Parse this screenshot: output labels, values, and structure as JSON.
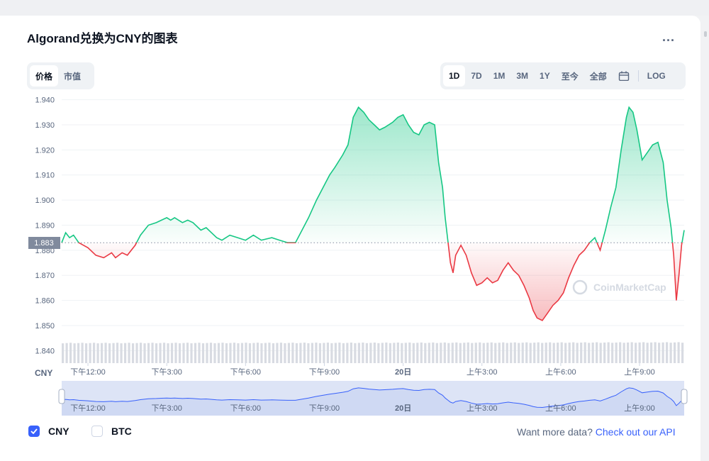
{
  "title": "Algorand兑换为CNY的图表",
  "more_label": "...",
  "view_tabs": [
    {
      "label": "价格",
      "active": true
    },
    {
      "label": "市值",
      "active": false
    }
  ],
  "range_tabs": [
    {
      "label": "1D",
      "active": true
    },
    {
      "label": "7D",
      "active": false
    },
    {
      "label": "1M",
      "active": false
    },
    {
      "label": "3M",
      "active": false
    },
    {
      "label": "1Y",
      "active": false
    },
    {
      "label": "至今",
      "active": false
    },
    {
      "label": "全部",
      "active": false
    }
  ],
  "calendar_icon": "calendar-icon",
  "log_label": "LOG",
  "watermark": "CoinMarketCap",
  "currency_label": "CNY",
  "legend": [
    {
      "label": "CNY",
      "checked": true
    },
    {
      "label": "BTC",
      "checked": false
    }
  ],
  "api_prompt": "Want more data?",
  "api_link": "Check out our API",
  "colors": {
    "up": "#16c784",
    "down": "#ea3943",
    "accent": "#3861fb",
    "baseline_tag": "#808a9d"
  },
  "chart_data": {
    "type": "line",
    "ylim": [
      1.835,
      1.943
    ],
    "yticks": [
      "1.940",
      "1.930",
      "1.920",
      "1.910",
      "1.900",
      "1.890",
      "1.880",
      "1.870",
      "1.860",
      "1.850",
      "1.840"
    ],
    "ytick_values": [
      1.94,
      1.93,
      1.92,
      1.91,
      1.9,
      1.89,
      1.88,
      1.87,
      1.86,
      1.85,
      1.84
    ],
    "xticks": [
      "下午12:00",
      "下午3:00",
      "下午6:00",
      "下午9:00",
      "20日",
      "上午3:00",
      "上午6:00",
      "上午9:00"
    ],
    "xtick_hours": [
      1,
      4,
      7,
      10,
      13,
      16,
      19,
      22
    ],
    "x_range_hours": [
      0,
      23.7
    ],
    "baseline": 1.883,
    "baseline_label": "1.883",
    "points": [
      [
        0.0,
        1.883
      ],
      [
        0.15,
        1.887
      ],
      [
        0.3,
        1.885
      ],
      [
        0.45,
        1.886
      ],
      [
        0.65,
        1.883
      ],
      [
        1.0,
        1.881
      ],
      [
        1.3,
        1.878
      ],
      [
        1.6,
        1.877
      ],
      [
        1.9,
        1.879
      ],
      [
        2.05,
        1.877
      ],
      [
        2.3,
        1.879
      ],
      [
        2.5,
        1.878
      ],
      [
        2.8,
        1.882
      ],
      [
        3.0,
        1.886
      ],
      [
        3.3,
        1.89
      ],
      [
        3.6,
        1.891
      ],
      [
        3.8,
        1.892
      ],
      [
        4.0,
        1.893
      ],
      [
        4.15,
        1.892
      ],
      [
        4.3,
        1.893
      ],
      [
        4.6,
        1.891
      ],
      [
        4.8,
        1.892
      ],
      [
        5.0,
        1.891
      ],
      [
        5.3,
        1.888
      ],
      [
        5.5,
        1.889
      ],
      [
        5.7,
        1.887
      ],
      [
        5.9,
        1.885
      ],
      [
        6.1,
        1.884
      ],
      [
        6.4,
        1.886
      ],
      [
        6.7,
        1.885
      ],
      [
        7.0,
        1.884
      ],
      [
        7.3,
        1.886
      ],
      [
        7.6,
        1.884
      ],
      [
        8.0,
        1.885
      ],
      [
        8.3,
        1.884
      ],
      [
        8.6,
        1.883
      ],
      [
        8.9,
        1.883
      ],
      [
        9.1,
        1.887
      ],
      [
        9.4,
        1.893
      ],
      [
        9.7,
        1.9
      ],
      [
        10.0,
        1.906
      ],
      [
        10.2,
        1.91
      ],
      [
        10.4,
        1.913
      ],
      [
        10.7,
        1.918
      ],
      [
        10.9,
        1.922
      ],
      [
        11.1,
        1.933
      ],
      [
        11.3,
        1.937
      ],
      [
        11.5,
        1.935
      ],
      [
        11.7,
        1.932
      ],
      [
        11.9,
        1.93
      ],
      [
        12.1,
        1.928
      ],
      [
        12.3,
        1.929
      ],
      [
        12.6,
        1.931
      ],
      [
        12.8,
        1.933
      ],
      [
        13.0,
        1.934
      ],
      [
        13.2,
        1.93
      ],
      [
        13.4,
        1.927
      ],
      [
        13.6,
        1.926
      ],
      [
        13.8,
        1.93
      ],
      [
        14.0,
        1.931
      ],
      [
        14.2,
        1.93
      ],
      [
        14.35,
        1.915
      ],
      [
        14.5,
        1.905
      ],
      [
        14.6,
        1.893
      ],
      [
        14.7,
        1.884
      ],
      [
        14.8,
        1.875
      ],
      [
        14.9,
        1.871
      ],
      [
        15.0,
        1.878
      ],
      [
        15.2,
        1.882
      ],
      [
        15.4,
        1.878
      ],
      [
        15.6,
        1.871
      ],
      [
        15.8,
        1.866
      ],
      [
        16.0,
        1.867
      ],
      [
        16.2,
        1.869
      ],
      [
        16.4,
        1.867
      ],
      [
        16.6,
        1.868
      ],
      [
        16.8,
        1.872
      ],
      [
        17.0,
        1.875
      ],
      [
        17.2,
        1.872
      ],
      [
        17.4,
        1.87
      ],
      [
        17.6,
        1.866
      ],
      [
        17.8,
        1.861
      ],
      [
        17.95,
        1.856
      ],
      [
        18.1,
        1.853
      ],
      [
        18.3,
        1.852
      ],
      [
        18.5,
        1.855
      ],
      [
        18.7,
        1.858
      ],
      [
        18.9,
        1.86
      ],
      [
        19.1,
        1.863
      ],
      [
        19.3,
        1.869
      ],
      [
        19.5,
        1.874
      ],
      [
        19.7,
        1.878
      ],
      [
        19.9,
        1.88
      ],
      [
        20.1,
        1.883
      ],
      [
        20.3,
        1.885
      ],
      [
        20.5,
        1.88
      ],
      [
        20.7,
        1.888
      ],
      [
        20.9,
        1.897
      ],
      [
        21.1,
        1.905
      ],
      [
        21.3,
        1.92
      ],
      [
        21.5,
        1.933
      ],
      [
        21.6,
        1.937
      ],
      [
        21.75,
        1.935
      ],
      [
        21.9,
        1.928
      ],
      [
        22.1,
        1.916
      ],
      [
        22.3,
        1.919
      ],
      [
        22.5,
        1.922
      ],
      [
        22.7,
        1.923
      ],
      [
        22.9,
        1.915
      ],
      [
        23.05,
        1.9
      ],
      [
        23.2,
        1.889
      ],
      [
        23.3,
        1.878
      ],
      [
        23.4,
        1.86
      ],
      [
        23.5,
        1.87
      ],
      [
        23.6,
        1.882
      ],
      [
        23.7,
        1.888
      ]
    ],
    "volume": [
      0.93,
      0.96
    ]
  }
}
